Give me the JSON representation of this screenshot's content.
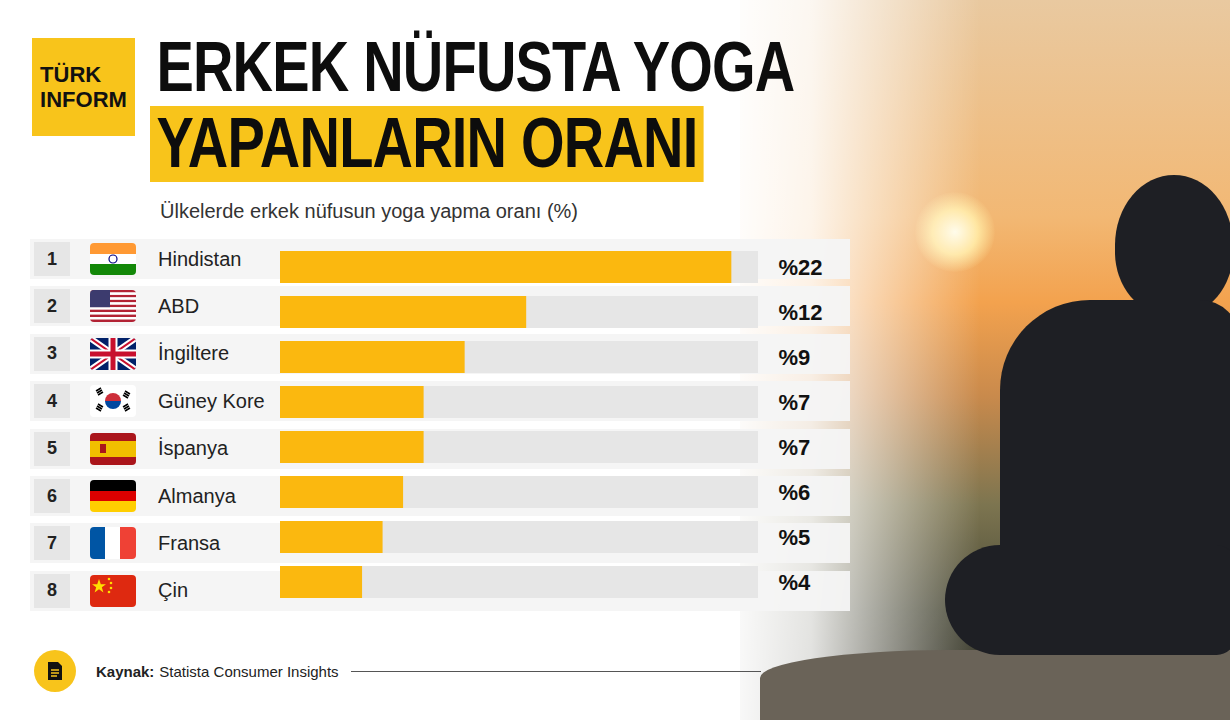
{
  "chart_data": {
    "type": "bar",
    "orientation": "horizontal",
    "title": "ERKEK NÜFUSTA YOGA\nYAPANLARIN ORANI",
    "subtitle": "Ülkelerde erkek nüfusun yoga yapma oranı (%)",
    "brand": "TÜRK\nINFORM",
    "source_label": "Kaynak:",
    "source": "Statista Consumer Insights",
    "ranks": [
      1,
      2,
      3,
      4,
      5,
      6,
      7,
      8
    ],
    "categories": [
      "Hindistan",
      "ABD",
      "İngiltere",
      "Güney Kore",
      "İspanya",
      "Almanya",
      "Fransa",
      "Çin"
    ],
    "values": [
      22,
      12,
      9,
      7,
      7,
      6,
      5,
      4
    ],
    "value_labels": [
      "%22",
      "%12",
      "%9",
      "%7",
      "%7",
      "%6",
      "%5",
      "%4"
    ],
    "color": "#fbb80f",
    "xlim": [
      0,
      23.3
    ],
    "tick_labels": false,
    "data_labels": true,
    "grid": false
  }
}
